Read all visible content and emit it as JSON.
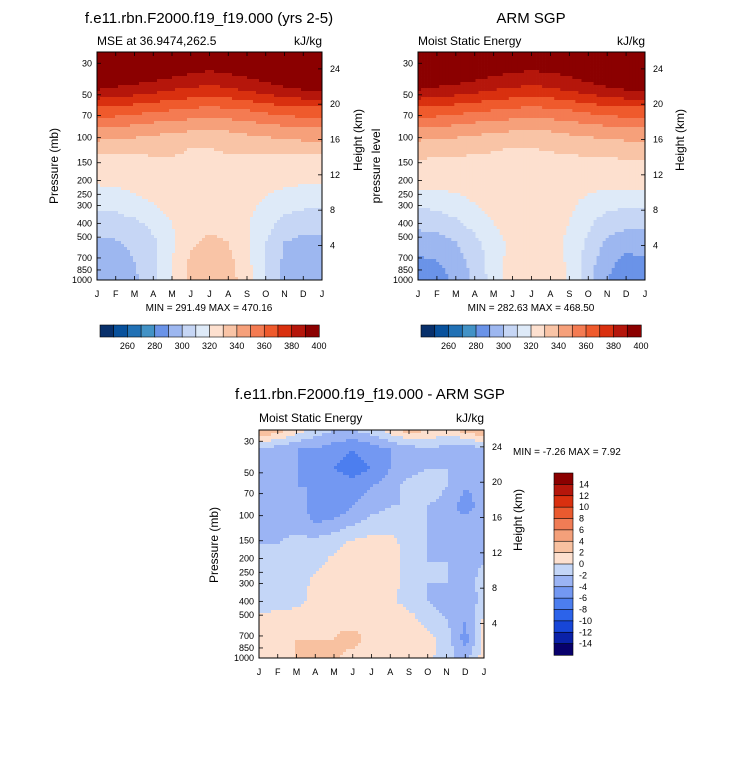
{
  "months": [
    "J",
    "F",
    "M",
    "A",
    "M",
    "J",
    "J",
    "A",
    "S",
    "O",
    "N",
    "D",
    "J"
  ],
  "pressure_ticks": [
    "30",
    "50",
    "70",
    "100",
    "150",
    "200",
    "250",
    "300",
    "400",
    "500",
    "700",
    "850",
    "1000"
  ],
  "height_ticks": [
    "24",
    "20",
    "16",
    "12",
    "8",
    "4"
  ],
  "colorbar_labels": [
    "260",
    "280",
    "300",
    "320",
    "340",
    "360",
    "380",
    "400"
  ],
  "diff_colorbar_labels": [
    "14",
    "12",
    "10",
    "8",
    "6",
    "4",
    "2",
    "0",
    "-2",
    "-4",
    "-6",
    "-8",
    "-10",
    "-12",
    "-14"
  ],
  "colors": {
    "abs_levels": [
      "#08306b",
      "#08519c",
      "#2171b5",
      "#4292c6",
      "#6a93e8",
      "#9db7f0",
      "#c6d6f5",
      "#deeaf8",
      "#fde0cf",
      "#f9c4a6",
      "#f6a07a",
      "#f47b52",
      "#ef5a2c",
      "#d9300f",
      "#b5160b",
      "#8b0000"
    ],
    "diff_levels": [
      "#08006b",
      "#0a21a8",
      "#1746d8",
      "#2c63ea",
      "#4c7eef",
      "#7398f2",
      "#9bb4f4",
      "#c4d6f7",
      "#fde0cf",
      "#f8c1a0",
      "#f4a07a",
      "#f07c55",
      "#ea5a2f",
      "#d9300f",
      "#b5160b",
      "#8b0000"
    ]
  },
  "chart_data": [
    {
      "type": "heatmap",
      "title": "f.e11.rbn.F2000.f19_f19.000 (yrs 2-5)",
      "subtitle_left": "MSE at 36.9474,262.5",
      "subtitle_right": "kJ/kg",
      "ylabel": "Pressure (mb)",
      "ylabel_right": "Height (km)",
      "stats": "MIN = 291.49 MAX = 470.16",
      "min": 291.49,
      "max": 470.16,
      "x": [
        "J",
        "F",
        "M",
        "A",
        "M",
        "J",
        "J",
        "A",
        "S",
        "O",
        "N",
        "D",
        "J"
      ],
      "levels": [
        260,
        270,
        280,
        290,
        300,
        310,
        320,
        330,
        340,
        350,
        360,
        370,
        380,
        390,
        400
      ],
      "grid": [
        [
          420,
          420,
          420,
          420,
          420,
          420,
          420,
          420,
          420,
          420,
          420,
          420,
          420
        ],
        [
          410,
          410,
          410,
          408,
          405,
          402,
          400,
          402,
          405,
          408,
          410,
          410,
          410
        ],
        [
          400,
          398,
          396,
          393,
          390,
          388,
          387,
          388,
          391,
          395,
          398,
          400,
          400
        ],
        [
          378,
          377,
          375,
          373,
          371,
          369,
          368,
          369,
          371,
          374,
          376,
          378,
          378
        ],
        [
          360,
          359,
          357,
          355,
          353,
          352,
          351,
          352,
          354,
          356,
          358,
          360,
          360
        ],
        [
          345,
          344,
          343,
          342,
          341,
          340,
          340,
          341,
          342,
          343,
          344,
          345,
          345
        ],
        [
          332,
          333,
          335,
          338,
          339,
          339,
          339,
          338,
          336,
          334,
          333,
          332,
          332
        ],
        [
          330,
          331,
          333,
          336,
          338,
          338,
          338,
          337,
          335,
          333,
          331,
          330,
          330
        ],
        [
          322,
          323,
          326,
          330,
          335,
          337,
          337,
          336,
          333,
          328,
          324,
          322,
          322
        ],
        [
          315,
          316,
          318,
          323,
          330,
          335,
          337,
          336,
          331,
          324,
          317,
          315,
          315
        ],
        [
          308,
          309,
          312,
          318,
          328,
          338,
          342,
          340,
          332,
          320,
          310,
          307,
          308
        ],
        [
          305,
          306,
          310,
          318,
          330,
          342,
          345,
          343,
          333,
          320,
          308,
          304,
          305
        ],
        [
          303,
          304,
          308,
          316,
          330,
          343,
          347,
          345,
          334,
          319,
          306,
          302,
          303
        ]
      ]
    },
    {
      "type": "heatmap",
      "title": "ARM SGP",
      "subtitle_left": "Moist Static Energy",
      "subtitle_right": "kJ/kg",
      "ylabel": "pressure level",
      "ylabel_right": "Height (km)",
      "stats": "MIN = 282.63 MAX = 468.50",
      "min": 282.63,
      "max": 468.5,
      "x": [
        "J",
        "F",
        "M",
        "A",
        "M",
        "J",
        "J",
        "A",
        "S",
        "O",
        "N",
        "D",
        "J"
      ],
      "levels": [
        260,
        270,
        280,
        290,
        300,
        310,
        320,
        330,
        340,
        350,
        360,
        370,
        380,
        390,
        400
      ],
      "grid": [
        [
          420,
          420,
          420,
          420,
          420,
          420,
          420,
          420,
          420,
          420,
          420,
          420,
          420
        ],
        [
          410,
          410,
          409,
          407,
          404,
          401,
          400,
          401,
          404,
          407,
          409,
          410,
          410
        ],
        [
          400,
          398,
          396,
          393,
          390,
          388,
          387,
          388,
          391,
          395,
          398,
          400,
          400
        ],
        [
          378,
          377,
          375,
          373,
          371,
          369,
          368,
          369,
          371,
          374,
          376,
          378,
          378
        ],
        [
          360,
          359,
          357,
          355,
          353,
          352,
          351,
          352,
          354,
          356,
          358,
          360,
          360
        ],
        [
          345,
          344,
          343,
          342,
          341,
          340,
          340,
          341,
          342,
          343,
          344,
          345,
          345
        ],
        [
          337,
          337,
          337,
          337,
          337,
          337,
          337,
          337,
          337,
          337,
          337,
          337,
          337
        ],
        [
          332,
          332,
          333,
          334,
          335,
          336,
          336,
          335,
          334,
          333,
          332,
          332,
          332
        ],
        [
          322,
          323,
          326,
          330,
          334,
          336,
          336,
          335,
          332,
          327,
          323,
          322,
          322
        ],
        [
          313,
          314,
          318,
          324,
          330,
          334,
          335,
          334,
          330,
          322,
          315,
          313,
          313
        ],
        [
          305,
          306,
          310,
          317,
          326,
          333,
          336,
          334,
          328,
          318,
          308,
          305,
          305
        ],
        [
          298,
          300,
          305,
          314,
          325,
          334,
          338,
          336,
          328,
          315,
          303,
          297,
          298
        ],
        [
          293,
          295,
          302,
          312,
          325,
          335,
          340,
          338,
          329,
          313,
          300,
          292,
          293
        ]
      ]
    },
    {
      "type": "heatmap",
      "title": "f.e11.rbn.F2000.f19_f19.000 - ARM SGP",
      "subtitle_left": "Moist Static Energy",
      "subtitle_right": "kJ/kg",
      "ylabel": "Pressure (mb)",
      "ylabel_right": "Height (km)",
      "stats": "MIN =  -7.26 MAX =   7.92",
      "min": -7.26,
      "max": 7.92,
      "x": [
        "J",
        "F",
        "M",
        "A",
        "M",
        "J",
        "J",
        "A",
        "S",
        "O",
        "N",
        "D",
        "J"
      ],
      "levels": [
        -14,
        -12,
        -10,
        -8,
        -6,
        -4,
        -2,
        0,
        2,
        4,
        6,
        8,
        10,
        12,
        14
      ],
      "grid": [
        [
          4,
          3,
          1,
          -1,
          -2,
          -2,
          -1,
          1,
          3,
          2,
          1,
          3,
          4
        ],
        [
          -2,
          -3,
          -4,
          -4,
          -5,
          -6,
          -5,
          -4,
          -3,
          -2,
          -3,
          -4,
          -2
        ],
        [
          -2,
          -3,
          -4,
          -5,
          -6,
          -7,
          -6,
          -4,
          -3,
          -2,
          -2,
          -3,
          -2
        ],
        [
          -3,
          -3,
          -4,
          -4,
          -5,
          -5,
          -4,
          -3,
          -1,
          -0.5,
          -2,
          -4,
          -3
        ],
        [
          -3,
          -3,
          -3,
          -5,
          -6,
          -4,
          -3,
          -2,
          -2,
          -2,
          -3,
          -5,
          -3
        ],
        [
          -2,
          -3,
          -3,
          -4,
          -3,
          -2,
          -1,
          -1,
          -2,
          -2,
          -3,
          -3,
          -2
        ],
        [
          -2,
          -2,
          -1,
          -1,
          -0.5,
          0.5,
          1,
          1,
          -1,
          -2,
          -3,
          -3,
          -2
        ],
        [
          -2,
          -1,
          -1,
          -0.5,
          0.5,
          1,
          1.5,
          1,
          -1,
          -2,
          -2,
          -3,
          -2
        ],
        [
          -1,
          -1,
          -1,
          0.5,
          1,
          1.5,
          1.5,
          1,
          -1,
          -2,
          -2,
          -3,
          -1
        ],
        [
          -1,
          -1,
          -0.5,
          0.5,
          1,
          2,
          1.5,
          0.5,
          -1,
          -2,
          -3,
          -4,
          -1
        ],
        [
          0.5,
          1,
          1,
          1,
          1.5,
          1,
          1.5,
          2,
          1,
          -1,
          -2,
          -4,
          0.5
        ],
        [
          1,
          1.5,
          2,
          2,
          2,
          3,
          1,
          2,
          1,
          1,
          -1,
          -5,
          1
        ],
        [
          1,
          1.5,
          2,
          3,
          2.5,
          1,
          0.5,
          2,
          2,
          0.5,
          -1,
          -3,
          1
        ]
      ]
    }
  ]
}
